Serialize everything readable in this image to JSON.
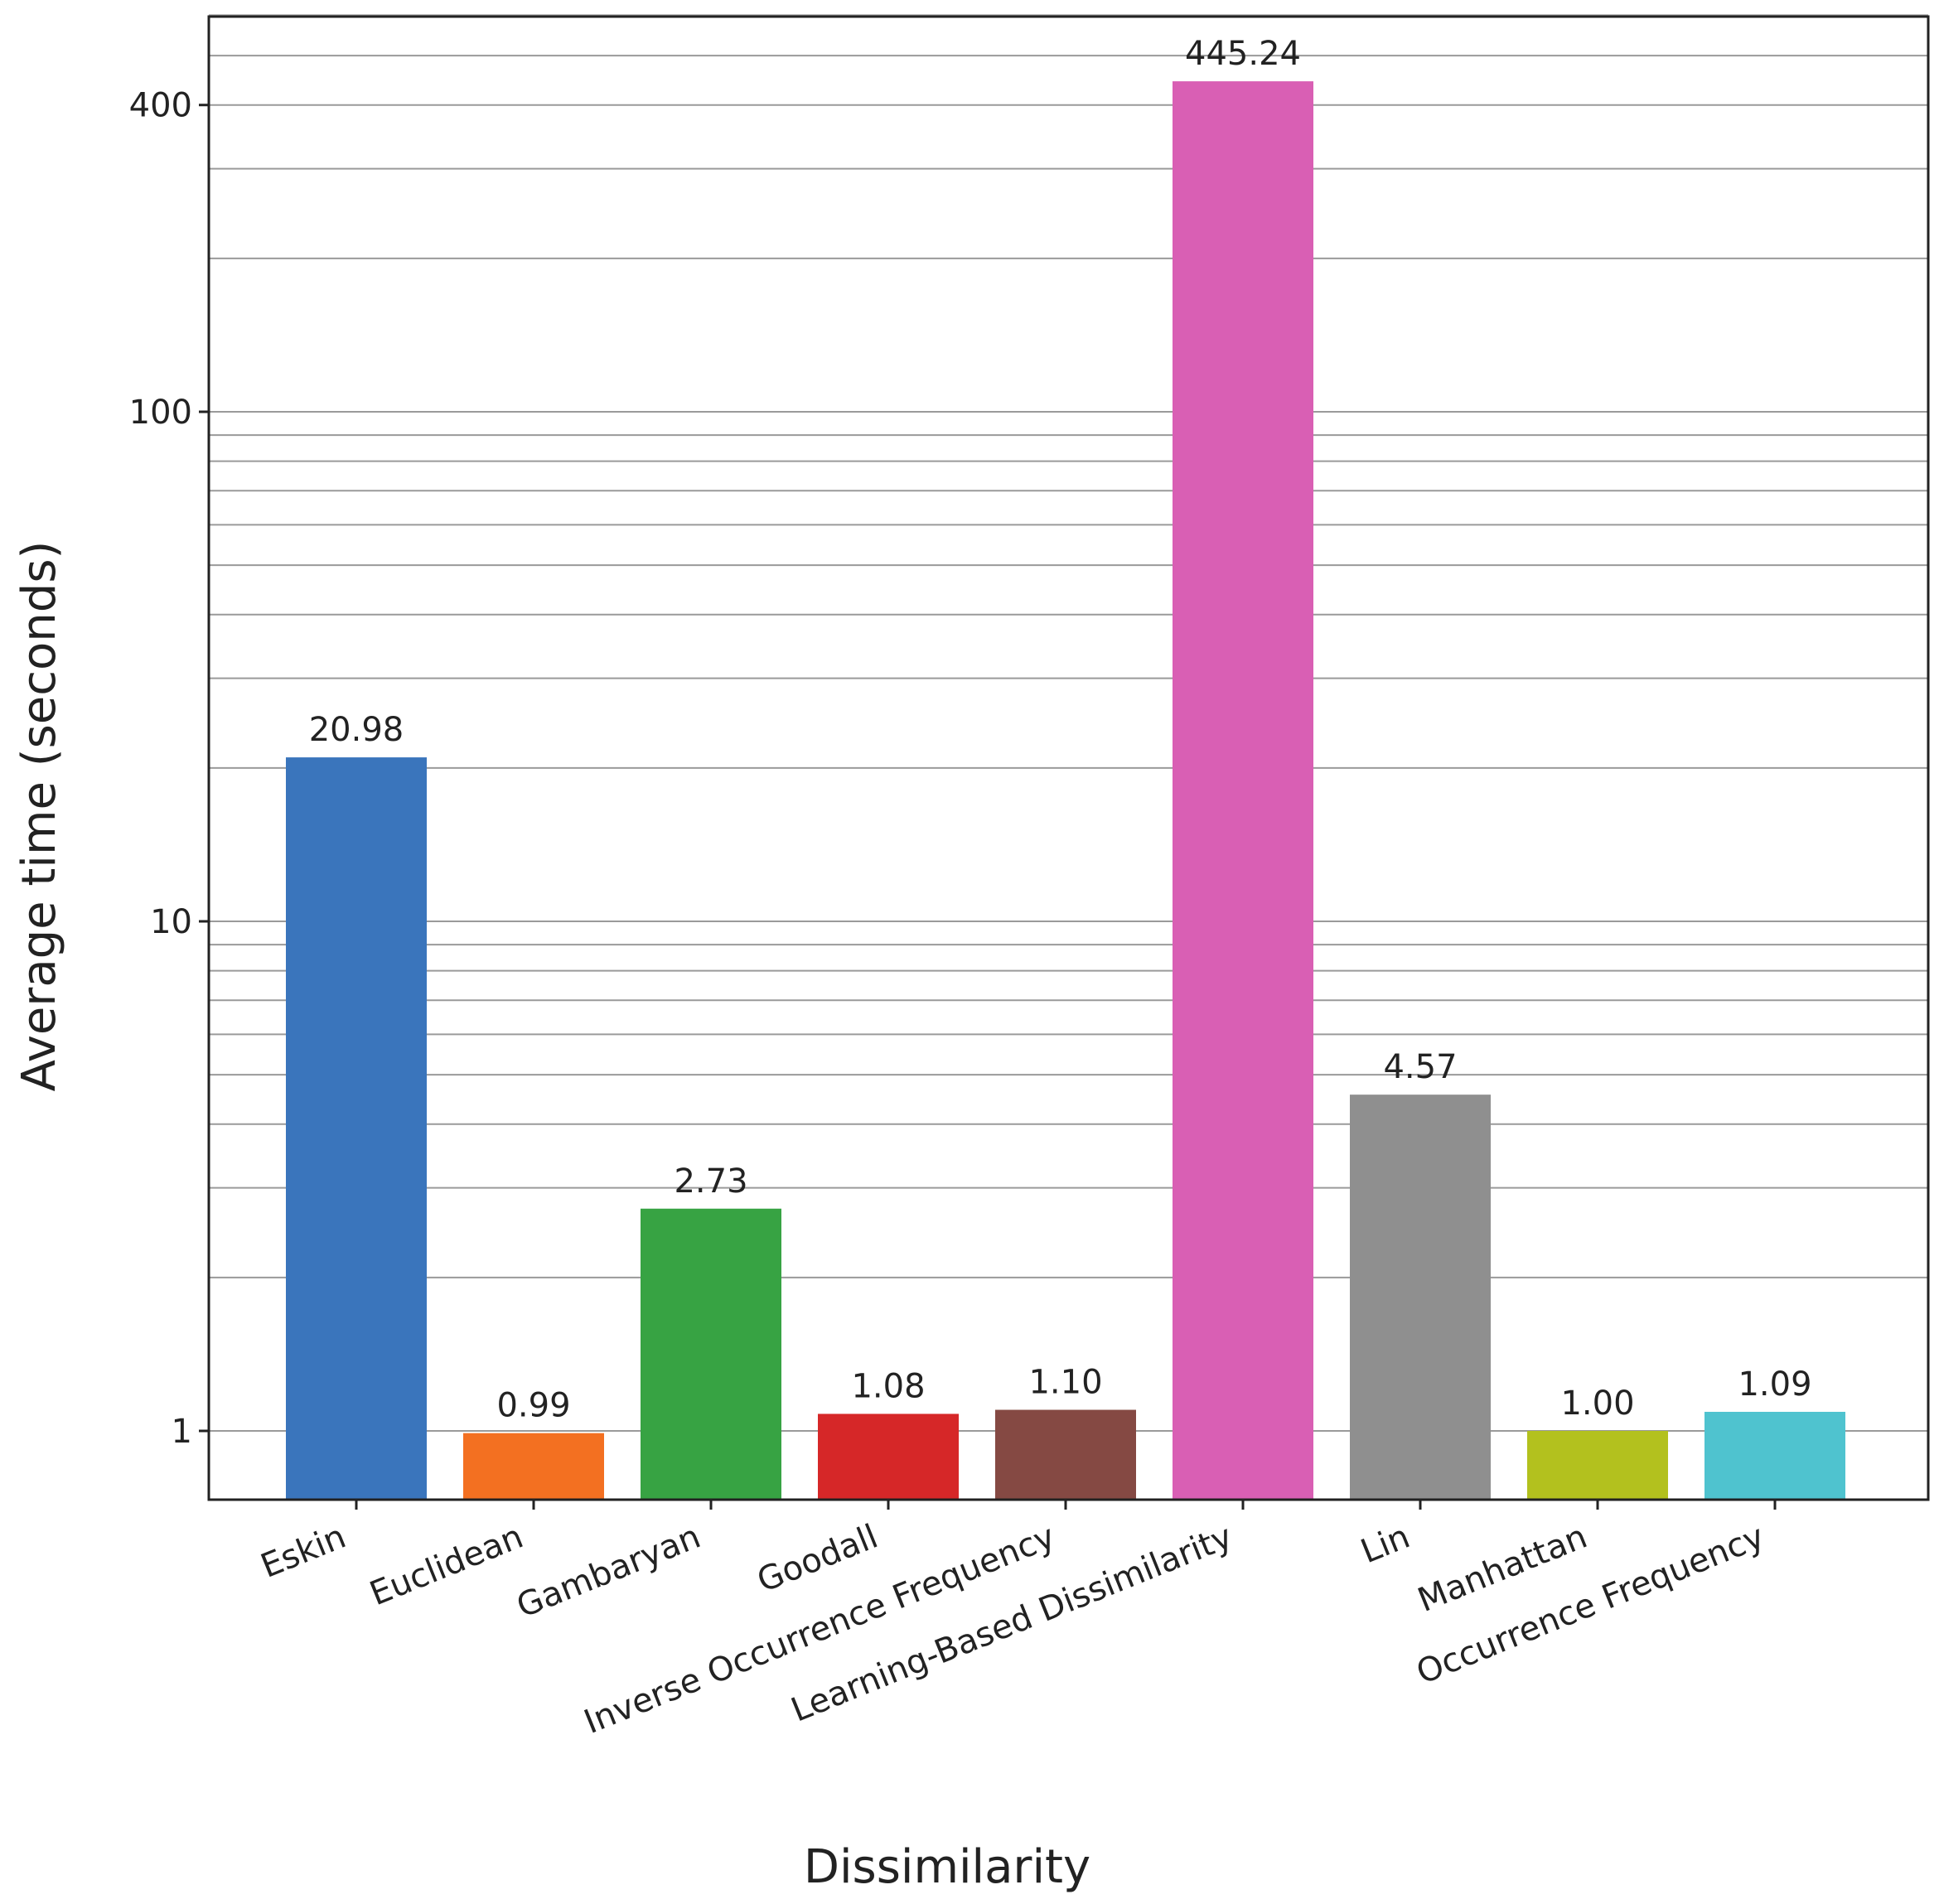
{
  "chart_data": {
    "type": "bar",
    "title": "",
    "xlabel": "Dissimilarity",
    "ylabel": "Average time (seconds)",
    "yscale": "log",
    "ylim": [
      0.74,
      640
    ],
    "yticks": [
      1,
      10,
      100,
      400
    ],
    "ytick_labels": [
      "1",
      "10",
      "100",
      "400"
    ],
    "grid": true,
    "categories": [
      "Eskin",
      "Euclidean",
      "Gambaryan",
      "Goodall",
      "Inverse Occurrence Frequency",
      "Learning-Based Dissimilarity",
      "Lin",
      "Manhattan",
      "Occurrence Frequency"
    ],
    "values": [
      20.98,
      0.99,
      2.73,
      1.08,
      1.1,
      445.24,
      4.57,
      1.0,
      1.09
    ],
    "value_labels": [
      "20.98",
      "0.99",
      "2.73",
      "1.08",
      "1.10",
      "445.24",
      "4.57",
      "1.00",
      "1.09"
    ],
    "colors": [
      "#3a75bc",
      "#f37021",
      "#37a343",
      "#d62728",
      "#854943",
      "#d95fb4",
      "#8f8f8f",
      "#b3c11e",
      "#4fc3cf"
    ]
  }
}
